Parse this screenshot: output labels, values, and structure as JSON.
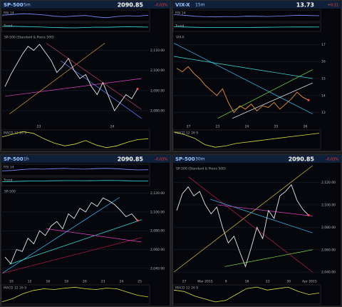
{
  "panels": [
    {
      "symbol": "SP-500",
      "interval": "5m",
      "price": "2090.85",
      "change": "-0.03%",
      "main_label": "SP-500 (Standard & Poors 500)",
      "studies": [
        {
          "label": "RSI 14",
          "values": [
            55,
            62,
            70,
            66,
            58,
            45,
            40,
            48,
            52,
            38,
            30,
            42,
            50,
            46,
            55
          ]
        },
        {
          "label": "Trend",
          "values": [
            60,
            62,
            58,
            55,
            50,
            45,
            42,
            40,
            45,
            50,
            48,
            52,
            55,
            53,
            50
          ]
        }
      ],
      "macd": {
        "label": "MACD 12 26 9",
        "values": [
          20,
          35,
          50,
          40,
          10,
          -15,
          -30,
          -20,
          0,
          -25,
          -40,
          -30,
          -10,
          5,
          10
        ]
      },
      "ylim": [
        2074,
        2118
      ],
      "yticks": [
        {
          "value": 2080,
          "label": "2,080.00"
        },
        {
          "value": 2090,
          "label": "2,090.00"
        },
        {
          "value": 2100,
          "label": "2,100.00"
        },
        {
          "value": 2110,
          "label": "2,110.00"
        }
      ],
      "prices": [
        2092,
        2098,
        2103,
        2108,
        2112,
        2110,
        2113,
        2109,
        2105,
        2099,
        2102,
        2106,
        2100,
        2096,
        2098,
        2092,
        2088,
        2094,
        2087,
        2080,
        2084,
        2088,
        2086,
        2090.85
      ],
      "xlabels": [
        "23",
        "24"
      ]
    },
    {
      "symbol": "VIX-X",
      "interval": "15m",
      "price": "13.73",
      "change": "+0.11",
      "main_label": "VIX-X",
      "studies": [
        {
          "label": "RSI 14",
          "values": [
            60,
            55,
            45,
            40,
            38,
            42,
            40,
            45,
            44,
            42,
            46,
            50,
            55,
            52,
            50
          ]
        },
        {
          "label": "Trend",
          "values": [
            55,
            52,
            48,
            45,
            44,
            45,
            46,
            45,
            47,
            48,
            50,
            51,
            52,
            52,
            51
          ]
        }
      ],
      "macd": {
        "label": "MACD 12 26 9",
        "values": [
          30,
          20,
          5,
          -20,
          -30,
          -25,
          -15,
          -10,
          -5,
          0,
          5,
          10,
          15,
          20,
          25
        ]
      },
      "ylim": [
        12.4,
        17.6
      ],
      "yticks": [
        13,
        14,
        15,
        16,
        17
      ],
      "prices": [
        15.6,
        15.4,
        15.7,
        15.3,
        15.0,
        14.6,
        14.3,
        14.0,
        14.4,
        13.6,
        13.0,
        13.4,
        13.2,
        13.5,
        13.1,
        13.4,
        13.3,
        13.6,
        13.2,
        13.5,
        13.8,
        14.2,
        13.9,
        13.73
      ],
      "xlabels": [
        "27",
        "23",
        "24",
        "25",
        "26"
      ]
    },
    {
      "symbol": "SP-500",
      "interval": "1h",
      "price": "2090.85",
      "change": "-0.03%",
      "main_label": "SP-500",
      "studies": [
        {
          "label": "RSI 14",
          "values": [
            40,
            45,
            55,
            60,
            58,
            62,
            65,
            60,
            58,
            63,
            66,
            62,
            55,
            50,
            52
          ]
        },
        {
          "label": "Trend",
          "values": [
            45,
            48,
            52,
            55,
            56,
            58,
            60,
            60,
            59,
            60,
            62,
            61,
            58,
            55,
            54
          ]
        }
      ],
      "macd": {
        "label": "MACD 12 26 9",
        "values": [
          -20,
          -10,
          5,
          15,
          20,
          18,
          22,
          25,
          20,
          18,
          22,
          20,
          10,
          0,
          -5
        ]
      },
      "ylim": [
        2030,
        2125
      ],
      "yticks": [
        {
          "value": 2040,
          "label": "2,040.00"
        },
        {
          "value": 2060,
          "label": "2,060.00"
        },
        {
          "value": 2080,
          "label": "2,080.00"
        },
        {
          "value": 2100,
          "label": "2,100.00"
        },
        {
          "value": 2120,
          "label": "2,120.00"
        }
      ],
      "prices": [
        2052,
        2045,
        2060,
        2058,
        2072,
        2066,
        2080,
        2075,
        2085,
        2090,
        2082,
        2098,
        2093,
        2104,
        2100,
        2110,
        2106,
        2115,
        2112,
        2108,
        2102,
        2095,
        2098,
        2090.85
      ],
      "xlabels": [
        "10",
        "12",
        "16",
        "18",
        "20",
        "23",
        "24",
        "25"
      ]
    },
    {
      "symbol": "SP-500",
      "interval": "30m",
      "price": "2090.85",
      "change": "-0.03%",
      "main_label": "SP-500 (Standard & Poors 500)",
      "studies": [],
      "macd": {
        "label": "MACD 12 26 9",
        "values": [
          10,
          5,
          -10,
          -20,
          -30,
          -25,
          -5,
          15,
          20,
          10,
          15,
          20,
          5,
          -5,
          0
        ]
      },
      "ylim": [
        2035,
        2135
      ],
      "yticks": [
        {
          "value": 2040,
          "label": "2,040.00"
        },
        {
          "value": 2060,
          "label": "2,060.00"
        },
        {
          "value": 2080,
          "label": "2,080.00"
        },
        {
          "value": 2100,
          "label": "2,100.00"
        },
        {
          "value": 2120,
          "label": "2,120.00"
        }
      ],
      "prices": [
        2095,
        2110,
        2116,
        2108,
        2112,
        2100,
        2092,
        2098,
        2080,
        2066,
        2072,
        2058,
        2045,
        2062,
        2080,
        2070,
        2095,
        2088,
        2108,
        2112,
        2118,
        2104,
        2096,
        2090.85
      ],
      "xlabels": [
        "27",
        "Mar 2015",
        "9",
        "16",
        "23",
        "30",
        "Apr 2015"
      ]
    }
  ]
}
